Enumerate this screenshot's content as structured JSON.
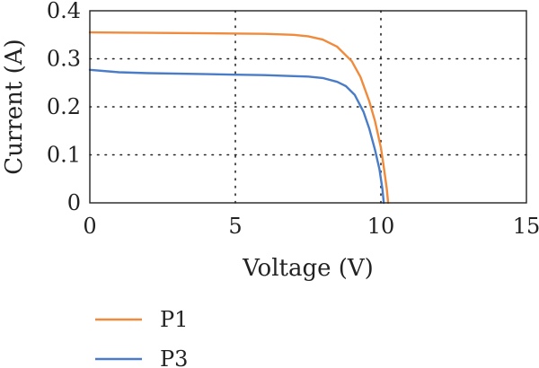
{
  "chart_data": {
    "type": "line",
    "title": "",
    "xlabel": "Voltage (V)",
    "ylabel": "Current (A)",
    "xlim": [
      0,
      15
    ],
    "ylim": [
      0,
      0.4
    ],
    "x_ticks": [
      0,
      5,
      10,
      15
    ],
    "x_tick_labels": [
      "0",
      "5",
      "10",
      "15"
    ],
    "y_ticks": [
      0,
      0.1,
      0.2,
      0.3,
      0.4
    ],
    "y_tick_labels": [
      "0",
      "0.1",
      "0.2",
      "0.3",
      "0.4"
    ],
    "grid": true,
    "legend_position": "bottom-left",
    "series": [
      {
        "name": "P1",
        "color": "#f08a3c",
        "x": [
          0,
          2,
          4,
          6,
          7,
          7.5,
          8,
          8.5,
          9,
          9.3,
          9.6,
          9.8,
          10.0,
          10.1,
          10.2,
          10.25
        ],
        "y": [
          0.355,
          0.354,
          0.353,
          0.352,
          0.35,
          0.347,
          0.34,
          0.325,
          0.295,
          0.262,
          0.212,
          0.17,
          0.115,
          0.075,
          0.03,
          0.0
        ]
      },
      {
        "name": "P3",
        "color": "#4a7cc7",
        "x": [
          0,
          1,
          2,
          4,
          6,
          7,
          7.5,
          8,
          8.5,
          8.8,
          9.1,
          9.4,
          9.6,
          9.8,
          9.95,
          10.05,
          10.1
        ],
        "y": [
          0.277,
          0.272,
          0.27,
          0.268,
          0.266,
          0.264,
          0.263,
          0.26,
          0.252,
          0.243,
          0.225,
          0.19,
          0.155,
          0.11,
          0.07,
          0.03,
          0.0
        ]
      }
    ]
  }
}
